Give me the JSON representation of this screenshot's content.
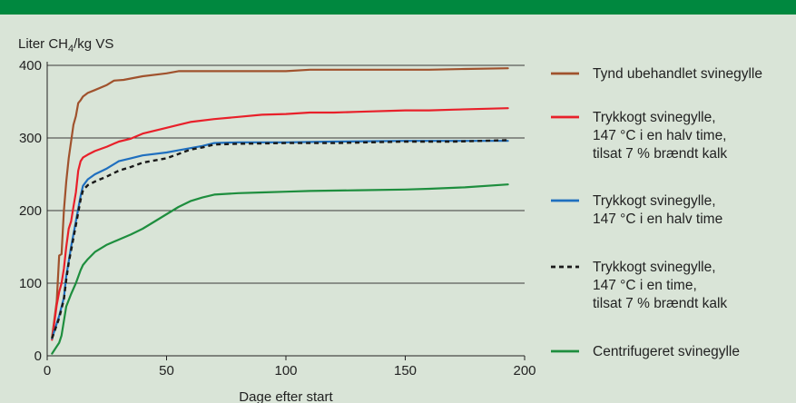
{
  "colors": {
    "background": "#d9e4d7",
    "top_bar": "#00883f",
    "gridline": "#3a3a3a"
  },
  "chart_data": {
    "type": "line",
    "title": "",
    "ylabel": "Liter CH4/kg VS",
    "ylabel_main": "Liter CH",
    "ylabel_sub": "4",
    "ylabel_rest": "/kg VS",
    "xlabel": "Dage efter start",
    "xlim": [
      0,
      200
    ],
    "ylim": [
      0,
      400
    ],
    "xticks": [
      0,
      50,
      100,
      150,
      200
    ],
    "yticks": [
      0,
      100,
      200,
      300,
      400
    ],
    "grid": "horizontal",
    "legend_position": "right",
    "series": [
      {
        "name": "Tynd ubehandlet svinegylle",
        "legend_lines": [
          "Tynd ubehandlet svinegylle"
        ],
        "color": "#a0522d",
        "dash": "",
        "points": [
          [
            2,
            25
          ],
          [
            4,
            75
          ],
          [
            5,
            138
          ],
          [
            6,
            140
          ],
          [
            7,
            200
          ],
          [
            8,
            240
          ],
          [
            9,
            272
          ],
          [
            10,
            295
          ],
          [
            11,
            318
          ],
          [
            12,
            330
          ],
          [
            13,
            348
          ],
          [
            14,
            352
          ],
          [
            15,
            357
          ],
          [
            17,
            362
          ],
          [
            20,
            366
          ],
          [
            25,
            373
          ],
          [
            28,
            379
          ],
          [
            32,
            380
          ],
          [
            40,
            385
          ],
          [
            50,
            389
          ],
          [
            55,
            392
          ],
          [
            60,
            392
          ],
          [
            70,
            392
          ],
          [
            80,
            392
          ],
          [
            90,
            392
          ],
          [
            100,
            392
          ],
          [
            110,
            394
          ],
          [
            120,
            394
          ],
          [
            150,
            394
          ],
          [
            160,
            394
          ],
          [
            175,
            395
          ],
          [
            193,
            396
          ]
        ]
      },
      {
        "name": "Trykkogt svinegylle, 147 °C i en halv time, tilsat 7 % brændt kalk",
        "legend_lines": [
          "Trykkogt svinegylle,",
          "147 °C i en halv time,",
          "tilsat 7 % brændt kalk"
        ],
        "color": "#e8202a",
        "dash": "",
        "points": [
          [
            2,
            22
          ],
          [
            4,
            70
          ],
          [
            5,
            88
          ],
          [
            6,
            100
          ],
          [
            7,
            120
          ],
          [
            8,
            150
          ],
          [
            9,
            175
          ],
          [
            10,
            185
          ],
          [
            11,
            205
          ],
          [
            12,
            225
          ],
          [
            13,
            255
          ],
          [
            14,
            268
          ],
          [
            15,
            273
          ],
          [
            17,
            277
          ],
          [
            20,
            282
          ],
          [
            25,
            288
          ],
          [
            30,
            295
          ],
          [
            35,
            299
          ],
          [
            40,
            306
          ],
          [
            50,
            314
          ],
          [
            55,
            318
          ],
          [
            60,
            322
          ],
          [
            70,
            326
          ],
          [
            80,
            329
          ],
          [
            90,
            332
          ],
          [
            100,
            333
          ],
          [
            110,
            335
          ],
          [
            120,
            335
          ],
          [
            130,
            336
          ],
          [
            150,
            338
          ],
          [
            160,
            338
          ],
          [
            170,
            339
          ],
          [
            193,
            341
          ]
        ]
      },
      {
        "name": "Trykkogt svinegylle, 147 °C i en halv time",
        "legend_lines": [
          "Trykkogt svinegylle,",
          "147 °C i en halv time"
        ],
        "color": "#1f6fbf",
        "dash": "",
        "points": [
          [
            2,
            24
          ],
          [
            5,
            55
          ],
          [
            7,
            80
          ],
          [
            8,
            110
          ],
          [
            9,
            130
          ],
          [
            10,
            150
          ],
          [
            12,
            185
          ],
          [
            14,
            220
          ],
          [
            15,
            234
          ],
          [
            17,
            243
          ],
          [
            20,
            250
          ],
          [
            25,
            258
          ],
          [
            30,
            268
          ],
          [
            35,
            272
          ],
          [
            40,
            276
          ],
          [
            50,
            280
          ],
          [
            55,
            283
          ],
          [
            60,
            286
          ],
          [
            65,
            289
          ],
          [
            70,
            293
          ],
          [
            80,
            294
          ],
          [
            100,
            294
          ],
          [
            120,
            295
          ],
          [
            150,
            296
          ],
          [
            170,
            296
          ],
          [
            193,
            296
          ]
        ]
      },
      {
        "name": "Trykkogt svinegylle, 147 °C i en time, tilsat 7 % brændt kalk",
        "legend_lines": [
          "Trykkogt svinegylle,",
          "147 °C i en time,",
          "tilsat 7 % brændt kalk"
        ],
        "color": "#1a1a1a",
        "dash": "5,4",
        "points": [
          [
            2,
            24
          ],
          [
            5,
            52
          ],
          [
            7,
            78
          ],
          [
            8,
            105
          ],
          [
            9,
            128
          ],
          [
            10,
            145
          ],
          [
            12,
            180
          ],
          [
            14,
            215
          ],
          [
            15,
            228
          ],
          [
            17,
            235
          ],
          [
            20,
            240
          ],
          [
            25,
            247
          ],
          [
            30,
            255
          ],
          [
            35,
            260
          ],
          [
            40,
            266
          ],
          [
            50,
            272
          ],
          [
            55,
            278
          ],
          [
            60,
            284
          ],
          [
            65,
            287
          ],
          [
            70,
            291
          ],
          [
            80,
            292
          ],
          [
            100,
            293
          ],
          [
            120,
            293
          ],
          [
            150,
            295
          ],
          [
            170,
            295
          ],
          [
            193,
            297
          ]
        ]
      },
      {
        "name": "Centrifugeret svinegylle",
        "legend_lines": [
          "Centrifugeret svinegylle"
        ],
        "color": "#1e8e3e",
        "dash": "",
        "points": [
          [
            2,
            3
          ],
          [
            5,
            18
          ],
          [
            6,
            28
          ],
          [
            7,
            48
          ],
          [
            8,
            68
          ],
          [
            10,
            85
          ],
          [
            12,
            100
          ],
          [
            14,
            118
          ],
          [
            15,
            125
          ],
          [
            17,
            133
          ],
          [
            20,
            143
          ],
          [
            25,
            153
          ],
          [
            30,
            160
          ],
          [
            35,
            167
          ],
          [
            40,
            175
          ],
          [
            45,
            185
          ],
          [
            50,
            195
          ],
          [
            55,
            205
          ],
          [
            60,
            213
          ],
          [
            65,
            218
          ],
          [
            70,
            222
          ],
          [
            80,
            224
          ],
          [
            90,
            225
          ],
          [
            100,
            226
          ],
          [
            110,
            227
          ],
          [
            130,
            228
          ],
          [
            150,
            229
          ],
          [
            160,
            230
          ],
          [
            175,
            232
          ],
          [
            193,
            236
          ]
        ]
      }
    ]
  }
}
